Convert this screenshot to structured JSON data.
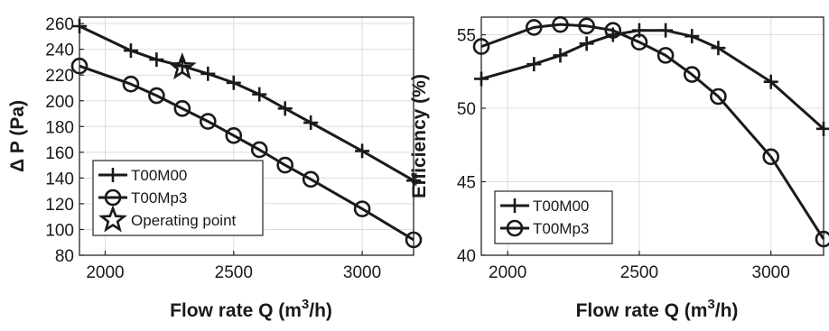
{
  "chart_data": [
    {
      "type": "line",
      "xlabel_main": "Flow rate Q (m",
      "xlabel_sup": "3",
      "xlabel_tail": "/h)",
      "ylabel": "Δ P (Pa)",
      "xlim": [
        1900,
        3200
      ],
      "ylim": [
        80,
        265
      ],
      "xticks": [
        2000,
        2500,
        3000
      ],
      "yticks": [
        80,
        100,
        120,
        140,
        160,
        180,
        200,
        220,
        240,
        260
      ],
      "grid": true,
      "legend_position": "bottom-left",
      "series": [
        {
          "name": "T00M00",
          "marker": "plus",
          "x": [
            1900,
            2100,
            2200,
            2300,
            2400,
            2500,
            2600,
            2700,
            2800,
            3000,
            3200
          ],
          "y": [
            258,
            239,
            232,
            227,
            221,
            214,
            205,
            194,
            183,
            161,
            138
          ]
        },
        {
          "name": "T00Mp3",
          "marker": "circle",
          "x": [
            1900,
            2100,
            2200,
            2300,
            2400,
            2500,
            2600,
            2700,
            2800,
            3000,
            3200
          ],
          "y": [
            227,
            213,
            204,
            194,
            184,
            173,
            162,
            150,
            139,
            116,
            92
          ]
        }
      ],
      "points": [
        {
          "name": "Operating point",
          "marker": "star",
          "x": 2300,
          "y": 226
        }
      ]
    },
    {
      "type": "line",
      "xlabel_main": "Flow rate Q (m",
      "xlabel_sup": "3",
      "xlabel_tail": "/h)",
      "ylabel": "Efficiency (%)",
      "xlim": [
        1900,
        3200
      ],
      "ylim": [
        40,
        56.2
      ],
      "xticks": [
        2000,
        2500,
        3000
      ],
      "yticks": [
        40,
        45,
        50,
        55
      ],
      "grid": true,
      "legend_position": "bottom-left",
      "series": [
        {
          "name": "T00M00",
          "marker": "plus",
          "x": [
            1900,
            2100,
            2200,
            2300,
            2400,
            2500,
            2600,
            2700,
            2800,
            3000,
            3200
          ],
          "y": [
            52.0,
            53.0,
            53.6,
            54.4,
            55.0,
            55.3,
            55.3,
            54.9,
            54.1,
            51.8,
            48.6
          ]
        },
        {
          "name": "T00Mp3",
          "marker": "circle",
          "x": [
            1900,
            2100,
            2200,
            2300,
            2400,
            2500,
            2600,
            2700,
            2800,
            3000,
            3200
          ],
          "y": [
            54.2,
            55.5,
            55.7,
            55.6,
            55.3,
            54.5,
            53.6,
            52.3,
            50.8,
            46.7,
            41.1
          ]
        }
      ],
      "points": []
    }
  ],
  "colors": {
    "line": "#1a1a1a",
    "grid": "#dcdcdc",
    "axes": "#262626",
    "background": "#ffffff"
  }
}
